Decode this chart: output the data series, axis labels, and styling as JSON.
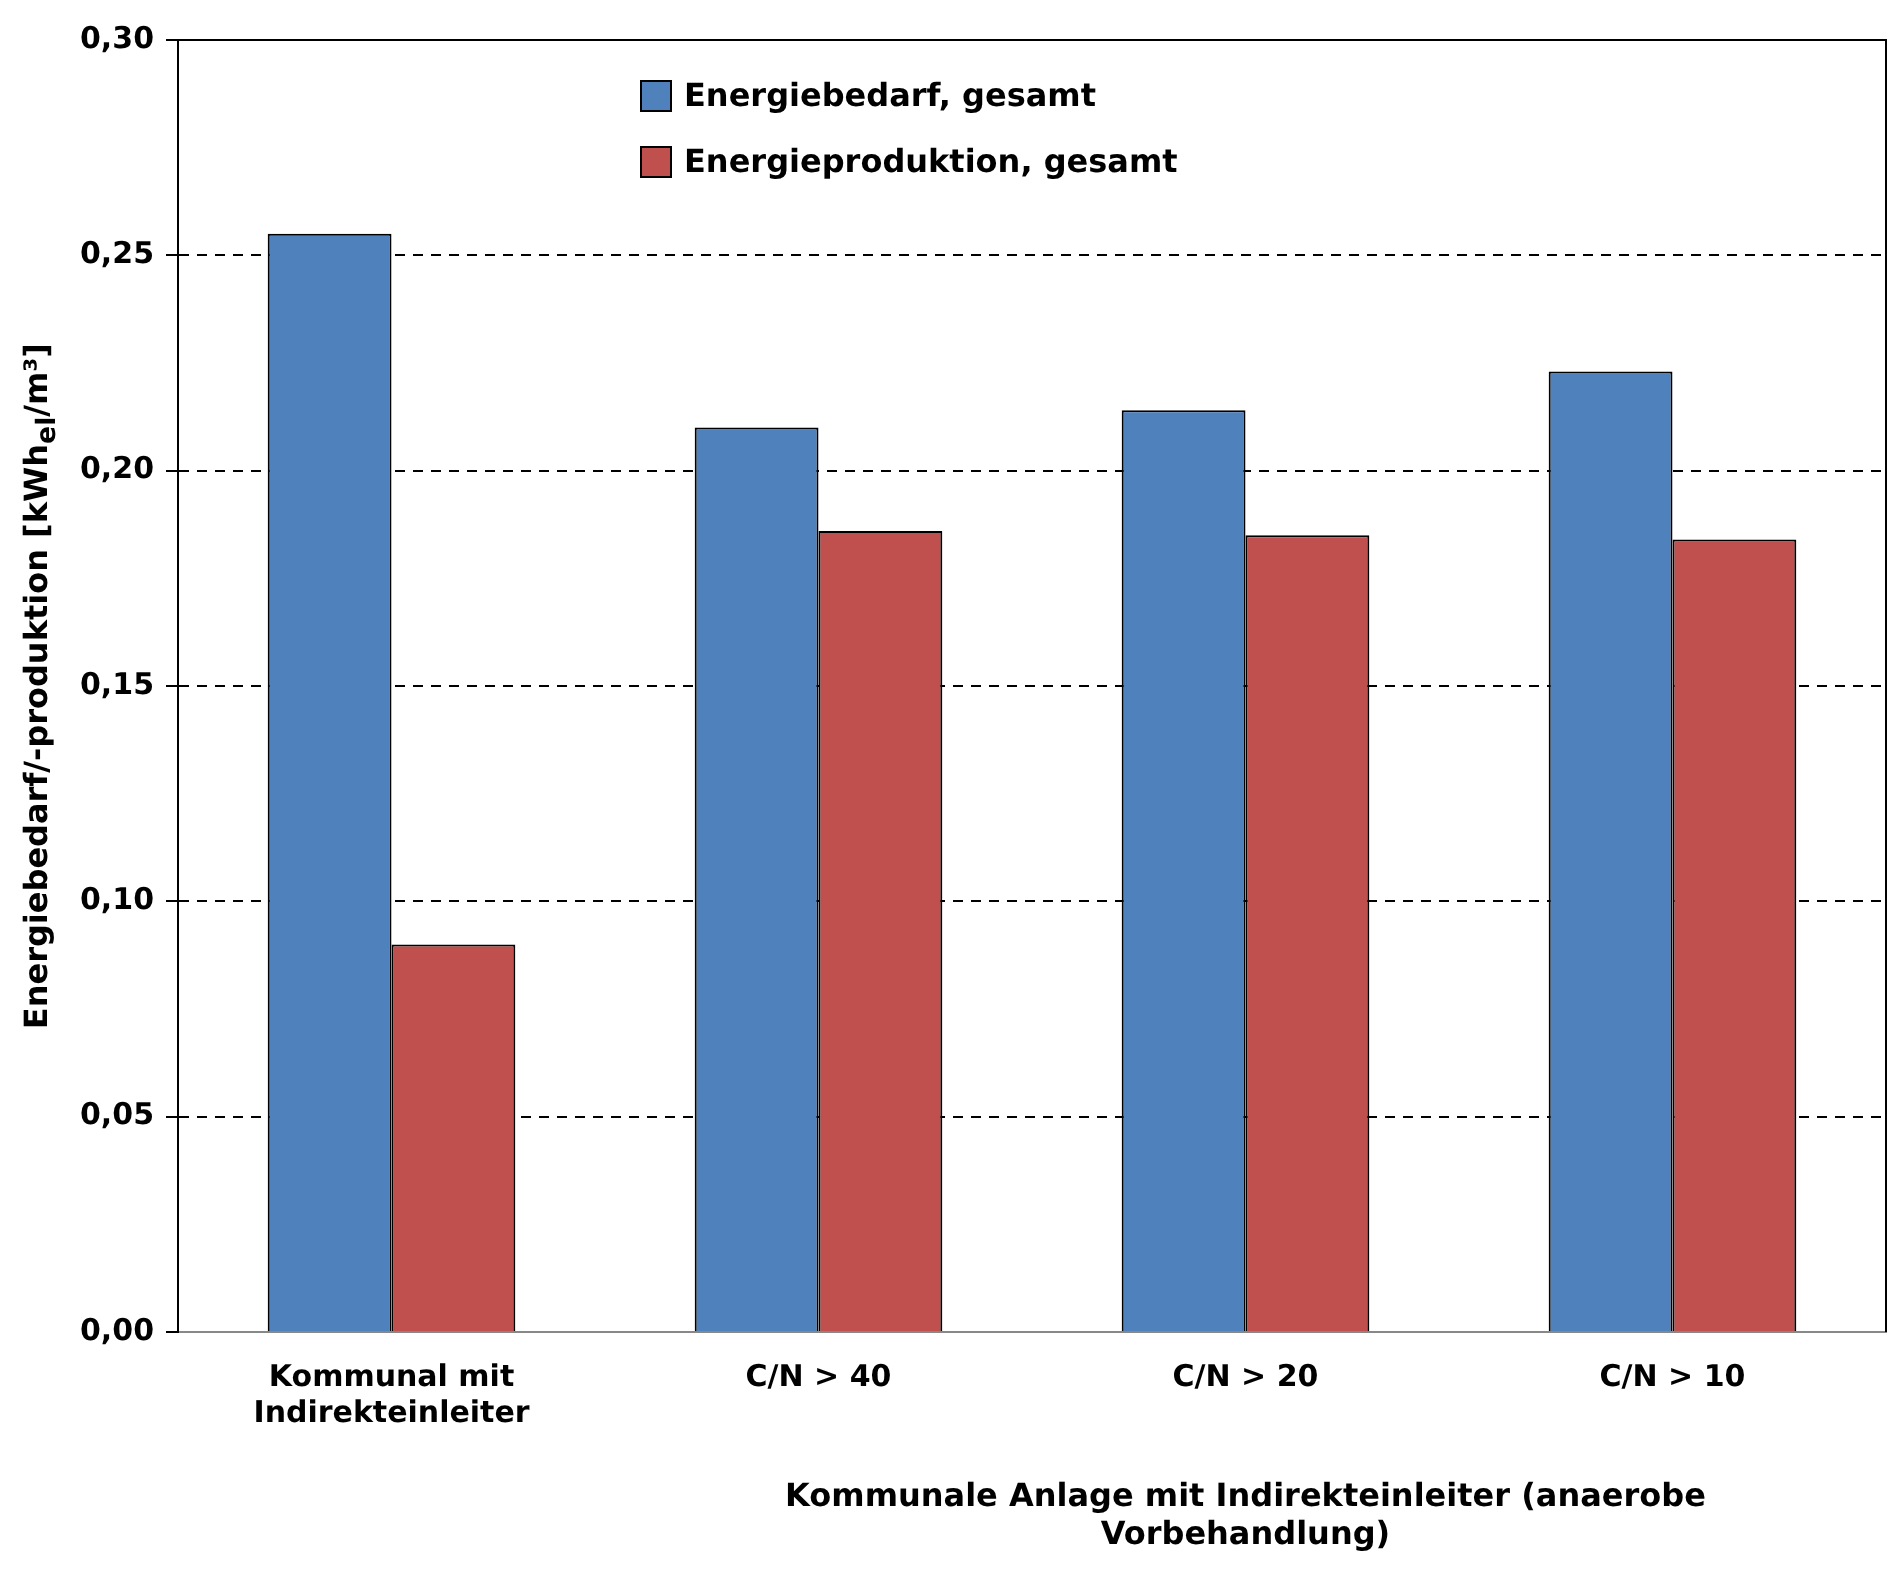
{
  "chart_data": {
    "type": "bar",
    "categories": [
      "Kommunal mit Indirekteinleiter",
      "C/N > 40",
      "C/N > 20",
      "C/N > 10"
    ],
    "series": [
      {
        "name": "Energiebedarf, gesamt",
        "color": "#4f81bd",
        "values": [
          0.255,
          0.21,
          0.214,
          0.223
        ]
      },
      {
        "name": "Energieproduktion, gesamt",
        "color": "#c0504d",
        "values": [
          0.09,
          0.186,
          0.185,
          0.184
        ]
      }
    ],
    "xlabel": "Kommunale Anlage mit Indirekteinleiter (anaerobe Vorbehandlung)",
    "ylabel": "Energiebedarf/-produktion [kWh$_{el}$/m³]",
    "ylim": [
      0,
      0.3
    ],
    "yticks": [
      {
        "value": 0,
        "label": "0,00"
      },
      {
        "value": 0.05,
        "label": "0,05"
      },
      {
        "value": 0.1,
        "label": "0,10"
      },
      {
        "value": 0.15,
        "label": "0,15"
      },
      {
        "value": 0.2,
        "label": "0,20"
      },
      {
        "value": 0.25,
        "label": "0,25"
      },
      {
        "value": 0.3,
        "label": "0,30"
      }
    ],
    "grid": "y",
    "line_style": "dashed",
    "legend": "top"
  }
}
